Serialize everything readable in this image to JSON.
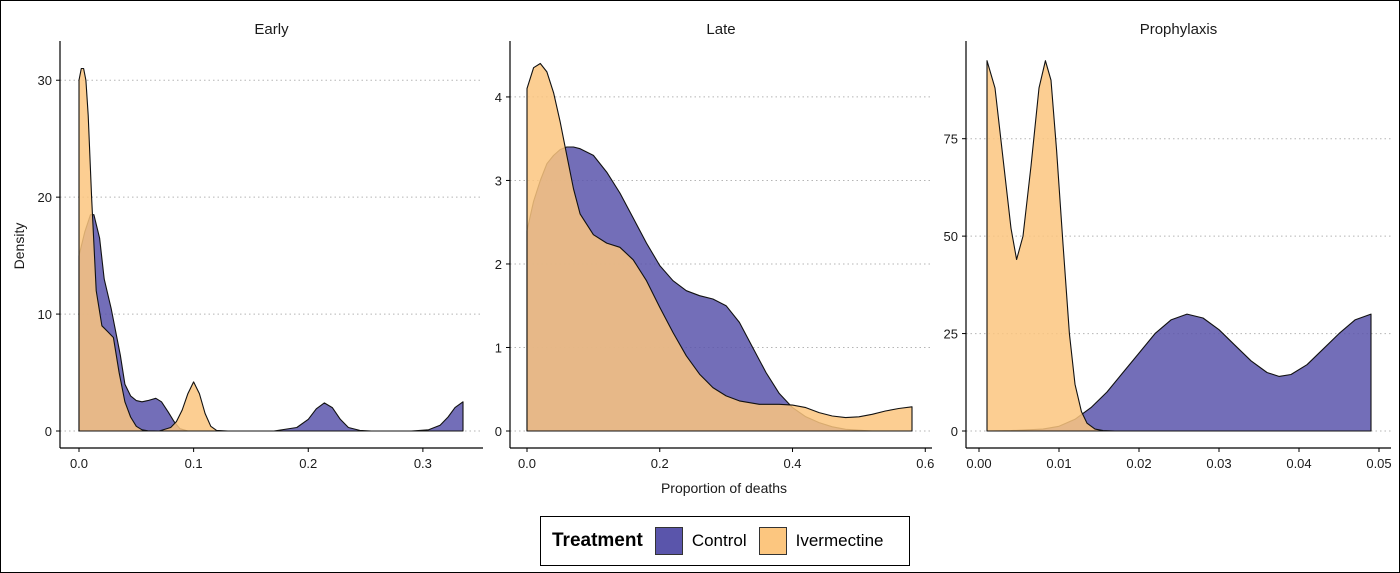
{
  "chart_data": {
    "type": "area",
    "subtype": "density",
    "ylabel": "Density",
    "xlabel": "Proportion of deaths",
    "grid": "horizontal-dotted",
    "legend": {
      "position": "bottom",
      "title": "Treatment",
      "entries": [
        {
          "name": "Control",
          "color": "#5a55ab"
        },
        {
          "name": "Ivermectine",
          "color": "#fcc67f"
        }
      ]
    },
    "colors": {
      "Control": "#5a55ab",
      "Ivermectine": "#fcc67f",
      "overlap": "#c0896a"
    },
    "panels": [
      {
        "title": "Early",
        "xlim": [
          0,
          0.335
        ],
        "ylim": [
          0,
          32.5
        ],
        "xticks": [
          0,
          0.1,
          0.2,
          0.3
        ],
        "xtick_labels": [
          "0.0",
          "0.1",
          "0.2",
          "0.3"
        ],
        "yticks": [
          0,
          10,
          20,
          30
        ],
        "ytick_labels": [
          "0",
          "10",
          "20",
          "30"
        ],
        "series": [
          {
            "name": "Control",
            "x": [
              0,
              0.005,
              0.01,
              0.013,
              0.018,
              0.022,
              0.028,
              0.032,
              0.036,
              0.04,
              0.045,
              0.05,
              0.055,
              0.06,
              0.067,
              0.072,
              0.078,
              0.083,
              0.088,
              0.095,
              0.1,
              0.105,
              0.11,
              0.12,
              0.14,
              0.17,
              0.19,
              0.2,
              0.207,
              0.214,
              0.221,
              0.228,
              0.235,
              0.245,
              0.255,
              0.27,
              0.29,
              0.305,
              0.315,
              0.322,
              0.328,
              0.335
            ],
            "y": [
              15,
              17,
              18.5,
              18.5,
              16.5,
              13,
              10.5,
              8.5,
              6.5,
              4,
              3,
              2.6,
              2.5,
              2.6,
              2.8,
              2.5,
              1.6,
              0.8,
              0.2,
              0,
              0,
              0,
              0,
              0,
              0,
              0,
              0.3,
              1,
              1.9,
              2.4,
              2,
              1,
              0.3,
              0.05,
              0,
              0,
              0,
              0.1,
              0.5,
              1.2,
              2,
              2.5
            ]
          },
          {
            "name": "Ivermectine",
            "x": [
              0,
              0.002,
              0.004,
              0.006,
              0.008,
              0.011,
              0.015,
              0.02,
              0.025,
              0.03,
              0.035,
              0.04,
              0.045,
              0.05,
              0.055,
              0.06,
              0.07,
              0.08,
              0.085,
              0.09,
              0.095,
              0.1,
              0.105,
              0.11,
              0.115,
              0.12,
              0.13
            ],
            "y": [
              30,
              31,
              31,
              30,
              27,
              20,
              12,
              9,
              8.5,
              8,
              5,
              2.5,
              1.2,
              0.4,
              0.1,
              0.02,
              0,
              0.3,
              0.8,
              1.8,
              3.2,
              4.2,
              3.2,
              1.5,
              0.4,
              0.05,
              0
            ]
          }
        ]
      },
      {
        "title": "Late",
        "xlim": [
          0,
          0.58
        ],
        "ylim": [
          0,
          4.55
        ],
        "xticks": [
          0,
          0.2,
          0.4,
          0.6
        ],
        "xtick_labels": [
          "0.0",
          "0.2",
          "0.4",
          "0.6"
        ],
        "yticks": [
          0,
          1,
          2,
          3,
          4
        ],
        "ytick_labels": [
          "0",
          "1",
          "2",
          "3",
          "4"
        ],
        "series": [
          {
            "name": "Control",
            "x": [
              0,
              0.01,
              0.02,
              0.03,
              0.04,
              0.05,
              0.06,
              0.07,
              0.08,
              0.1,
              0.12,
              0.14,
              0.16,
              0.18,
              0.2,
              0.22,
              0.24,
              0.26,
              0.28,
              0.3,
              0.32,
              0.34,
              0.36,
              0.38,
              0.4,
              0.42,
              0.44,
              0.46,
              0.48,
              0.5,
              0.52,
              0.55,
              0.58
            ],
            "y": [
              2.4,
              2.75,
              3.0,
              3.2,
              3.3,
              3.37,
              3.4,
              3.4,
              3.38,
              3.3,
              3.1,
              2.85,
              2.55,
              2.25,
              1.98,
              1.8,
              1.68,
              1.62,
              1.58,
              1.5,
              1.3,
              1.0,
              0.7,
              0.45,
              0.28,
              0.17,
              0.1,
              0.05,
              0.02,
              0.01,
              0,
              0,
              0
            ]
          },
          {
            "name": "Ivermectine",
            "x": [
              0,
              0.01,
              0.02,
              0.03,
              0.04,
              0.05,
              0.06,
              0.07,
              0.08,
              0.1,
              0.12,
              0.14,
              0.16,
              0.18,
              0.2,
              0.22,
              0.24,
              0.26,
              0.28,
              0.3,
              0.32,
              0.35,
              0.38,
              0.4,
              0.42,
              0.44,
              0.46,
              0.48,
              0.5,
              0.52,
              0.54,
              0.56,
              0.58
            ],
            "y": [
              4.1,
              4.35,
              4.4,
              4.3,
              4.05,
              3.7,
              3.3,
              2.9,
              2.6,
              2.35,
              2.25,
              2.2,
              2.05,
              1.8,
              1.48,
              1.18,
              0.9,
              0.68,
              0.52,
              0.42,
              0.36,
              0.32,
              0.32,
              0.31,
              0.28,
              0.22,
              0.18,
              0.16,
              0.17,
              0.2,
              0.24,
              0.27,
              0.29
            ]
          }
        ]
      },
      {
        "title": "Prophylaxis",
        "xlim": [
          0.001,
          0.049
        ],
        "ylim": [
          0,
          97.5
        ],
        "xticks": [
          0,
          0.01,
          0.02,
          0.03,
          0.04,
          0.05
        ],
        "xtick_labels": [
          "0.00",
          "0.01",
          "0.02",
          "0.03",
          "0.04",
          "0.05"
        ],
        "yticks": [
          0,
          25,
          50,
          75
        ],
        "ytick_labels": [
          "0",
          "25",
          "50",
          "75"
        ],
        "series": [
          {
            "name": "Control",
            "x": [
              0.001,
              0.004,
              0.008,
              0.01,
              0.012,
              0.014,
              0.016,
              0.018,
              0.02,
              0.022,
              0.024,
              0.026,
              0.028,
              0.03,
              0.032,
              0.034,
              0.036,
              0.0375,
              0.039,
              0.041,
              0.043,
              0.045,
              0.047,
              0.049
            ],
            "y": [
              0,
              0.1,
              0.5,
              1.2,
              3,
              6,
              10,
              15,
              20,
              25,
              28.5,
              30,
              29,
              26,
              22,
              18,
              15,
              14,
              14.5,
              17,
              21,
              25,
              28.5,
              30
            ]
          },
          {
            "name": "Ivermectine",
            "x": [
              0.001,
              0.002,
              0.003,
              0.004,
              0.0047,
              0.0055,
              0.0065,
              0.0075,
              0.0083,
              0.009,
              0.0097,
              0.0105,
              0.0113,
              0.012,
              0.0128,
              0.0135,
              0.0145,
              0.0155,
              0.017
            ],
            "y": [
              95,
              88,
              70,
              52,
              44,
              50,
              68,
              88,
              95,
              90,
              72,
              48,
              25,
              12,
              5,
              2,
              0.5,
              0.1,
              0
            ]
          }
        ]
      }
    ]
  }
}
